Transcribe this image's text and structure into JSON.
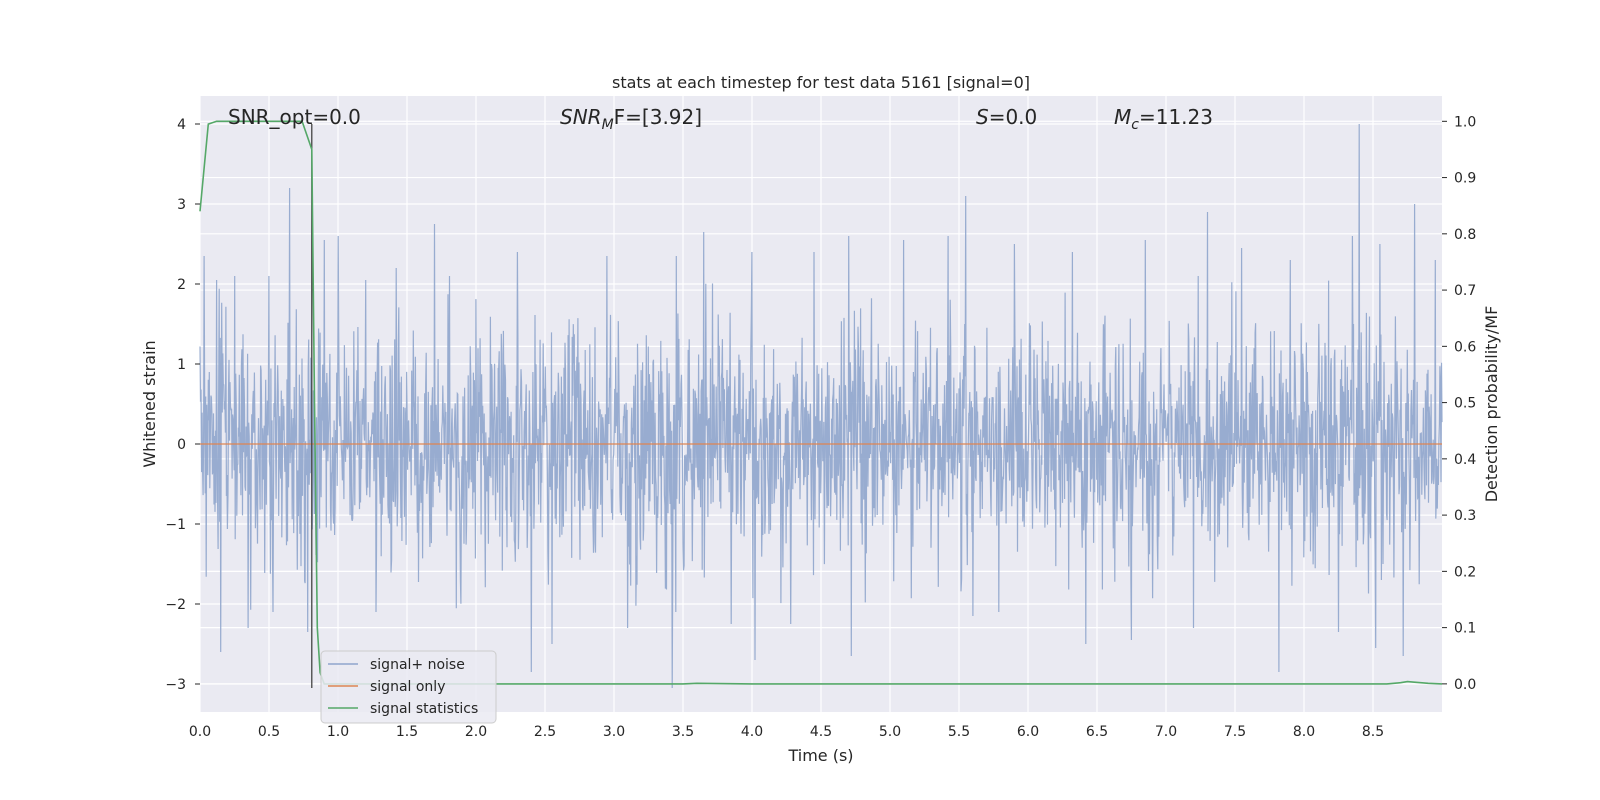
{
  "chart_data": {
    "type": "line",
    "title": "stats at each timestep for test data 5161 [signal=0]",
    "xlabel": "Time (s)",
    "ylabel": "Whitened strain",
    "ylabel_right": "Detection probability/MF",
    "xlim": [
      0.0,
      9.0
    ],
    "ylim": [
      -3.35,
      4.35
    ],
    "ylim_right": [
      -0.05,
      1.045
    ],
    "x_ticks": [
      "0.0",
      "0.5",
      "1.0",
      "1.5",
      "2.0",
      "2.5",
      "3.0",
      "3.5",
      "4.0",
      "4.5",
      "5.0",
      "5.5",
      "6.0",
      "6.5",
      "7.0",
      "7.5",
      "8.0",
      "8.5"
    ],
    "y_ticks": [
      "−3",
      "−2",
      "−1",
      "0",
      "1",
      "2",
      "3",
      "4"
    ],
    "y_ticks_right": [
      "0.0",
      "0.1",
      "0.2",
      "0.3",
      "0.4",
      "0.5",
      "0.6",
      "0.7",
      "0.8",
      "0.9",
      "1.0"
    ],
    "grid": true,
    "legend_position": "lower-left",
    "annotations": [
      {
        "id": "snr-opt",
        "prefix": "SNR_opt=0.0",
        "sub": "",
        "suffix": ""
      },
      {
        "id": "snr-mf",
        "prefix": "SNR",
        "sub": "M",
        "suffix": "F=[3.92]"
      },
      {
        "id": "s",
        "prefix": "S",
        "sub": "",
        "suffix": "=0.0"
      },
      {
        "id": "mc",
        "prefix": "M",
        "sub": "c",
        "suffix": "=11.23"
      }
    ],
    "vline_x": 0.81,
    "series": [
      {
        "name": "signal+ noise",
        "color": "#8fa5cc",
        "kind": "noise",
        "spikes": [
          {
            "x": 0.03,
            "y": 2.35
          },
          {
            "x": 0.12,
            "y": 2.05
          },
          {
            "x": 0.25,
            "y": 2.1
          },
          {
            "x": 0.35,
            "y": 2.05
          },
          {
            "x": 0.5,
            "y": 2.1
          },
          {
            "x": 0.65,
            "y": 3.2
          },
          {
            "x": 0.78,
            "y": 2.5
          },
          {
            "x": 0.9,
            "y": 2.55
          },
          {
            "x": 1.0,
            "y": 2.6
          },
          {
            "x": 1.2,
            "y": 2.05
          },
          {
            "x": 1.42,
            "y": 2.2
          },
          {
            "x": 1.7,
            "y": 2.75
          },
          {
            "x": 2.3,
            "y": 2.4
          },
          {
            "x": 2.55,
            "y": 2.3
          },
          {
            "x": 2.95,
            "y": 2.35
          },
          {
            "x": 3.45,
            "y": 2.35
          },
          {
            "x": 3.65,
            "y": 2.65
          },
          {
            "x": 4.0,
            "y": 2.4
          },
          {
            "x": 4.45,
            "y": 2.4
          },
          {
            "x": 4.7,
            "y": 2.6
          },
          {
            "x": 5.1,
            "y": 2.55
          },
          {
            "x": 5.42,
            "y": 2.6
          },
          {
            "x": 5.55,
            "y": 3.1
          },
          {
            "x": 5.9,
            "y": 2.5
          },
          {
            "x": 6.32,
            "y": 2.4
          },
          {
            "x": 6.85,
            "y": 2.55
          },
          {
            "x": 7.3,
            "y": 2.9
          },
          {
            "x": 7.55,
            "y": 2.45
          },
          {
            "x": 7.9,
            "y": 2.3
          },
          {
            "x": 8.35,
            "y": 2.6
          },
          {
            "x": 8.4,
            "y": 4.0
          },
          {
            "x": 8.55,
            "y": 2.5
          },
          {
            "x": 8.8,
            "y": 3.0
          },
          {
            "x": 8.95,
            "y": 2.3
          },
          {
            "x": 0.15,
            "y": -2.6
          },
          {
            "x": 0.35,
            "y": -2.3
          },
          {
            "x": 0.78,
            "y": -2.35
          },
          {
            "x": 2.4,
            "y": -2.85
          },
          {
            "x": 2.55,
            "y": -2.5
          },
          {
            "x": 3.1,
            "y": -2.3
          },
          {
            "x": 3.42,
            "y": -3.05
          },
          {
            "x": 3.85,
            "y": -2.25
          },
          {
            "x": 4.02,
            "y": -2.7
          },
          {
            "x": 4.28,
            "y": -2.25
          },
          {
            "x": 4.72,
            "y": -2.65
          },
          {
            "x": 5.6,
            "y": -2.15
          },
          {
            "x": 6.42,
            "y": -2.5
          },
          {
            "x": 6.75,
            "y": -2.45
          },
          {
            "x": 7.2,
            "y": -2.3
          },
          {
            "x": 7.82,
            "y": -2.85
          },
          {
            "x": 8.25,
            "y": -2.35
          },
          {
            "x": 8.52,
            "y": -2.55
          },
          {
            "x": 8.72,
            "y": -2.65
          }
        ]
      },
      {
        "name": "signal only",
        "color": "#dd8452",
        "kind": "flat",
        "value": 0.0
      },
      {
        "name": "signal statistics",
        "color": "#55a868",
        "axis": "right",
        "x": [
          0.0,
          0.06,
          0.12,
          0.2,
          0.3,
          0.5,
          0.65,
          0.74,
          0.81,
          0.83,
          0.85,
          0.87,
          0.9,
          1.0,
          2.0,
          3.0,
          3.5,
          3.6,
          4.0,
          5.0,
          6.0,
          7.0,
          8.0,
          8.6,
          8.7,
          8.75,
          8.8,
          8.9,
          9.0
        ],
        "y": [
          0.84,
          0.995,
          1.0,
          1.0,
          1.0,
          1.0,
          1.0,
          1.0,
          0.95,
          0.5,
          0.1,
          0.02,
          0.0,
          0.0,
          0.0,
          0.0,
          0.0,
          0.001,
          0.0,
          0.0,
          0.0,
          0.0,
          0.0,
          0.0,
          0.002,
          0.004,
          0.003,
          0.001,
          0.0
        ]
      }
    ]
  }
}
